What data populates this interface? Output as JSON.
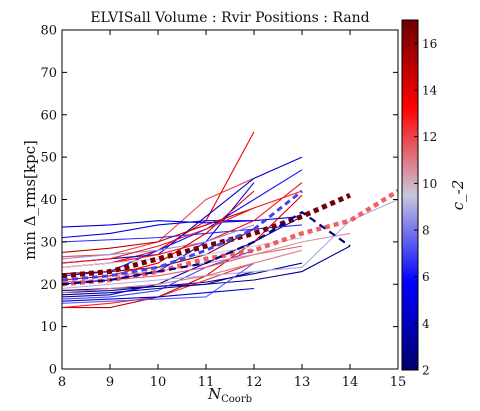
{
  "chart_data": {
    "type": "line",
    "title": "ELVISall   Volume : Rvir   Positions : Rand",
    "xlabel_main": "N",
    "xlabel_sub": "Coorb",
    "ylabel": "min Δ_rms[kpc]",
    "xlim": [
      8,
      15
    ],
    "ylim": [
      0,
      80
    ],
    "xticks": [
      8,
      9,
      10,
      11,
      12,
      13,
      14,
      15
    ],
    "yticks": [
      0,
      10,
      20,
      30,
      40,
      50,
      60,
      70,
      80
    ],
    "grid": false,
    "colorbar": {
      "label": "c_-2",
      "range": [
        2,
        17
      ],
      "ticks": [
        2,
        4,
        6,
        8,
        10,
        12,
        14,
        16
      ],
      "colormap": [
        "#00006e",
        "#0000ff",
        "#c8c8dc",
        "#ff0000",
        "#6e0000"
      ]
    },
    "series": [
      {
        "c": 12.0,
        "x": [
          8,
          9,
          10,
          11,
          12
        ],
        "y": [
          26.5,
          27,
          30,
          40,
          45
        ]
      },
      {
        "c": 13.5,
        "x": [
          8,
          9,
          10,
          11,
          12
        ],
        "y": [
          24,
          25,
          28,
          35,
          56
        ]
      },
      {
        "c": 5.0,
        "x": [
          8,
          9,
          10,
          11,
          12
        ],
        "y": [
          33.5,
          34,
          35,
          34.5,
          35
        ]
      },
      {
        "c": 5.5,
        "x": [
          8,
          9,
          10,
          11,
          12,
          13
        ],
        "y": [
          31,
          32,
          34,
          35,
          35,
          36
        ]
      },
      {
        "c": 4.5,
        "x": [
          8,
          9,
          10,
          11,
          12,
          13
        ],
        "y": [
          25,
          26,
          27,
          36,
          45,
          50
        ]
      },
      {
        "c": 6.0,
        "x": [
          8,
          9,
          10,
          11,
          12,
          13
        ],
        "y": [
          22,
          23,
          28,
          33,
          40,
          47
        ]
      },
      {
        "c": 3.5,
        "x": [
          8,
          9,
          10,
          11,
          12,
          13
        ],
        "y": [
          18,
          18.5,
          19.5,
          20.5,
          22.5,
          25
        ]
      },
      {
        "c": 2.5,
        "x": [
          8,
          9,
          10,
          11,
          12
        ],
        "y": [
          18.5,
          19,
          19.5,
          20,
          23
        ]
      },
      {
        "c": 4.0,
        "x": [
          8,
          9,
          10,
          11,
          12,
          13
        ],
        "y": [
          17,
          17.5,
          20,
          25,
          30,
          36
        ]
      },
      {
        "c": 7.0,
        "x": [
          8,
          9,
          10,
          11,
          12
        ],
        "y": [
          16.5,
          17,
          18.5,
          24,
          28
        ]
      },
      {
        "c": 12.5,
        "x": [
          8,
          9,
          10,
          11,
          12
        ],
        "y": [
          14.5,
          15.5,
          17,
          21,
          25
        ]
      },
      {
        "c": 14.5,
        "x": [
          8,
          9,
          10,
          11,
          12,
          13
        ],
        "y": [
          14.5,
          14.5,
          17,
          22,
          30,
          41
        ]
      },
      {
        "c": 11.5,
        "x": [
          8,
          9,
          10,
          11,
          12,
          13
        ],
        "y": [
          20.5,
          21,
          22,
          24,
          27,
          29
        ]
      },
      {
        "c": 10.5,
        "x": [
          8,
          9,
          10,
          11,
          12,
          13,
          14
        ],
        "y": [
          21,
          22,
          23,
          25,
          27,
          30,
          32
        ]
      },
      {
        "c": 9.0,
        "x": [
          8,
          9,
          10,
          11,
          12,
          13,
          14,
          15
        ],
        "y": [
          19,
          20,
          21,
          22,
          23,
          24,
          35,
          40
        ]
      },
      {
        "c": 3.0,
        "x": [
          8,
          9,
          10,
          11,
          12,
          13,
          14
        ],
        "y": [
          17.5,
          18,
          19,
          20,
          21,
          23,
          29
        ]
      },
      {
        "c": 15.0,
        "x": [
          8,
          9,
          10,
          11,
          12
        ],
        "y": [
          27.5,
          28.5,
          30,
          34,
          38
        ]
      },
      {
        "c": 6.5,
        "x": [
          8,
          9,
          10,
          11,
          12,
          13
        ],
        "y": [
          30,
          30.5,
          31,
          32,
          33,
          34
        ]
      },
      {
        "c": 13.0,
        "x": [
          8,
          9,
          10,
          11,
          12,
          13
        ],
        "y": [
          24,
          25,
          27,
          30,
          35,
          44
        ]
      },
      {
        "c": 16.5,
        "x": [
          8,
          9,
          10,
          11,
          12
        ],
        "y": [
          22.5,
          23,
          24,
          27,
          33
        ]
      },
      {
        "c": 5.2,
        "x": [
          8,
          9,
          10,
          11,
          12
        ],
        "y": [
          20,
          21,
          23,
          30,
          44
        ]
      },
      {
        "c": 8.5,
        "x": [
          8,
          9,
          10,
          11,
          12
        ],
        "y": [
          26,
          27,
          28,
          30,
          34
        ]
      },
      {
        "c": 7.5,
        "x": [
          8,
          9,
          10,
          11,
          12
        ],
        "y": [
          15.5,
          16,
          16.5,
          17,
          25
        ]
      },
      {
        "c": 11.0,
        "x": [
          8,
          9,
          10,
          11,
          12,
          13
        ],
        "y": [
          18,
          19,
          20,
          22,
          25,
          28
        ]
      },
      {
        "c": 9.5,
        "x": [
          8,
          9,
          10,
          11,
          12,
          13
        ],
        "y": [
          24,
          25,
          26,
          27,
          29,
          31
        ]
      },
      {
        "c": 4.8,
        "x": [
          8,
          9,
          10,
          11,
          12
        ],
        "y": [
          16,
          16.5,
          17,
          18,
          19
        ]
      },
      {
        "c": 14.0,
        "x": [
          8,
          9,
          10,
          11,
          12
        ],
        "y": [
          21,
          22,
          25,
          32,
          42
        ]
      },
      {
        "c": 12.8,
        "x": [
          8,
          9,
          10,
          11,
          12,
          13
        ],
        "y": [
          25,
          26,
          29,
          33,
          38,
          42
        ]
      }
    ],
    "dashed_series": [
      {
        "c": 16.8,
        "x": [
          8,
          9,
          10,
          11,
          12,
          13,
          14
        ],
        "y": [
          22,
          23,
          26,
          29,
          32,
          36,
          41
        ]
      },
      {
        "c": 12.0,
        "x": [
          8,
          9,
          10,
          11,
          12,
          13,
          14,
          15
        ],
        "y": [
          20,
          21,
          23,
          26,
          28,
          32,
          35,
          42
        ]
      },
      {
        "c": 2.5,
        "x": [
          8,
          9,
          10,
          11,
          12,
          13,
          14
        ],
        "y": [
          20,
          21,
          23,
          25,
          30,
          37,
          29
        ]
      },
      {
        "c": 7.0,
        "x": [
          8,
          9,
          10,
          11,
          12,
          13
        ],
        "y": [
          21,
          22,
          24,
          28,
          33,
          42
        ]
      }
    ]
  }
}
